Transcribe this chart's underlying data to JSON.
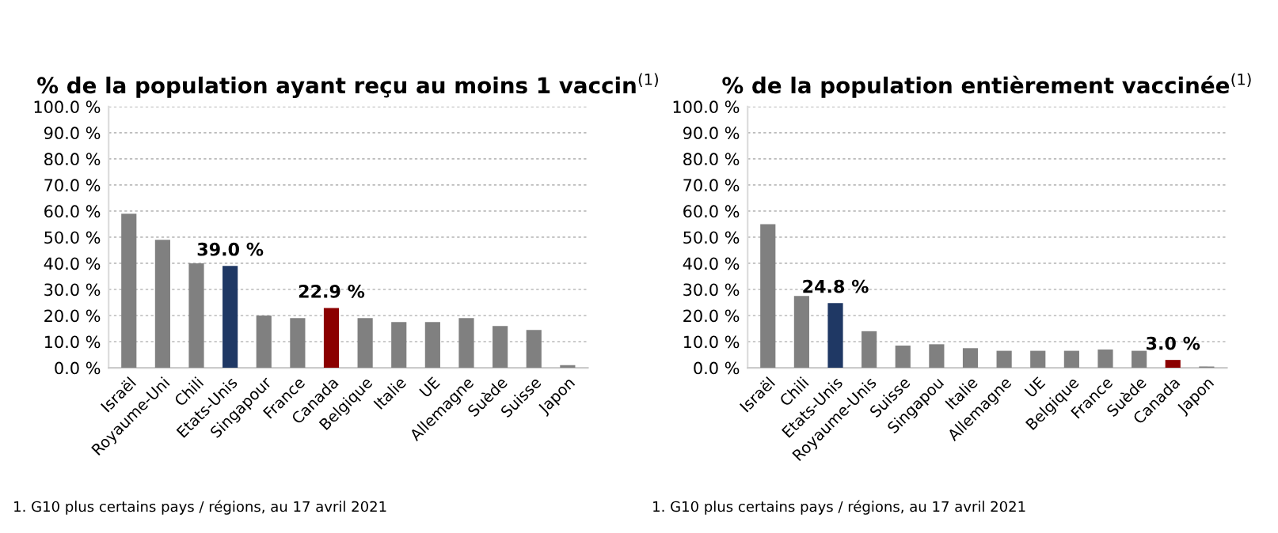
{
  "chart_data": [
    {
      "type": "bar",
      "title": "% de la population ayant reçu au moins 1 vaccin$^{(1)}$",
      "categories": [
        "Israël",
        "Royaume-Uni",
        "Chili",
        "Etats-Unis",
        "Singapour",
        "France",
        "Canada",
        "Belgique",
        "Italie",
        "UE",
        "Allemagne",
        "Suède",
        "Suisse",
        "Japon"
      ],
      "values": [
        59,
        49,
        40,
        39.0,
        20,
        19,
        22.9,
        19,
        17.5,
        17.5,
        19,
        16,
        14.5,
        1
      ],
      "colors": [
        "#808080",
        "#808080",
        "#808080",
        "#1f3864",
        "#808080",
        "#808080",
        "#8b0000",
        "#808080",
        "#808080",
        "#808080",
        "#808080",
        "#808080",
        "#808080",
        "#808080"
      ],
      "value_labels": [
        null,
        null,
        null,
        "39.0 %",
        null,
        null,
        "22.9 %",
        null,
        null,
        null,
        null,
        null,
        null,
        null
      ],
      "ylim": [
        0,
        100
      ],
      "yticks": [
        {
          "value": 0,
          "label": "0.0 %"
        },
        {
          "value": 10,
          "label": "10.0 %"
        },
        {
          "value": 20,
          "label": "20.0 %"
        },
        {
          "value": 30,
          "label": "30.0 %"
        },
        {
          "value": 40,
          "label": "40.0 %"
        },
        {
          "value": 50,
          "label": "50.0 %"
        },
        {
          "value": 60,
          "label": "60.0 %"
        },
        {
          "value": 70,
          "label": "70.0 %"
        },
        {
          "value": 80,
          "label": "80.0 %"
        },
        {
          "value": 90,
          "label": "90.0 %"
        },
        {
          "value": 100,
          "label": "100.0 %"
        }
      ],
      "grid": "y",
      "legend": false,
      "annotations": [
        "1. G10 plus certains pays / régions, au 17 avril 2021"
      ]
    },
    {
      "type": "bar",
      "title": "% de la population entièrement vaccinée$^{(1)}$",
      "categories": [
        "Israël",
        "Chili",
        "Etats-Unis",
        "Royaume-Unis",
        "Suisse",
        "Singapou",
        "Italie",
        "Allemagne",
        "UE",
        "Belgique",
        "France",
        "Suède",
        "Canada",
        "Japon"
      ],
      "values": [
        55,
        27.5,
        24.8,
        14,
        8.5,
        9,
        7.5,
        6.5,
        6.5,
        6.5,
        7,
        6.5,
        3.0,
        0.5
      ],
      "colors": [
        "#808080",
        "#808080",
        "#1f3864",
        "#808080",
        "#808080",
        "#808080",
        "#808080",
        "#808080",
        "#808080",
        "#808080",
        "#808080",
        "#808080",
        "#8b0000",
        "#808080"
      ],
      "value_labels": [
        null,
        null,
        "24.8 %",
        null,
        null,
        null,
        null,
        null,
        null,
        null,
        null,
        null,
        "3.0 %",
        null
      ],
      "ylim": [
        0,
        100
      ],
      "yticks": [
        {
          "value": 0,
          "label": "0.0 %"
        },
        {
          "value": 10,
          "label": "10.0 %"
        },
        {
          "value": 20,
          "label": "20.0 %"
        },
        {
          "value": 30,
          "label": "30.0 %"
        },
        {
          "value": 40,
          "label": "40.0 %"
        },
        {
          "value": 50,
          "label": "50.0 %"
        },
        {
          "value": 60,
          "label": "60.0 %"
        },
        {
          "value": 70,
          "label": "70.0 %"
        },
        {
          "value": 80,
          "label": "80.0 %"
        },
        {
          "value": 90,
          "label": "90.0 %"
        },
        {
          "value": 100,
          "label": "100.0 %"
        }
      ],
      "grid": "y",
      "legend": false,
      "annotations": [
        "1. G10 plus certains pays / régions, au 17 avril 2021"
      ]
    }
  ]
}
